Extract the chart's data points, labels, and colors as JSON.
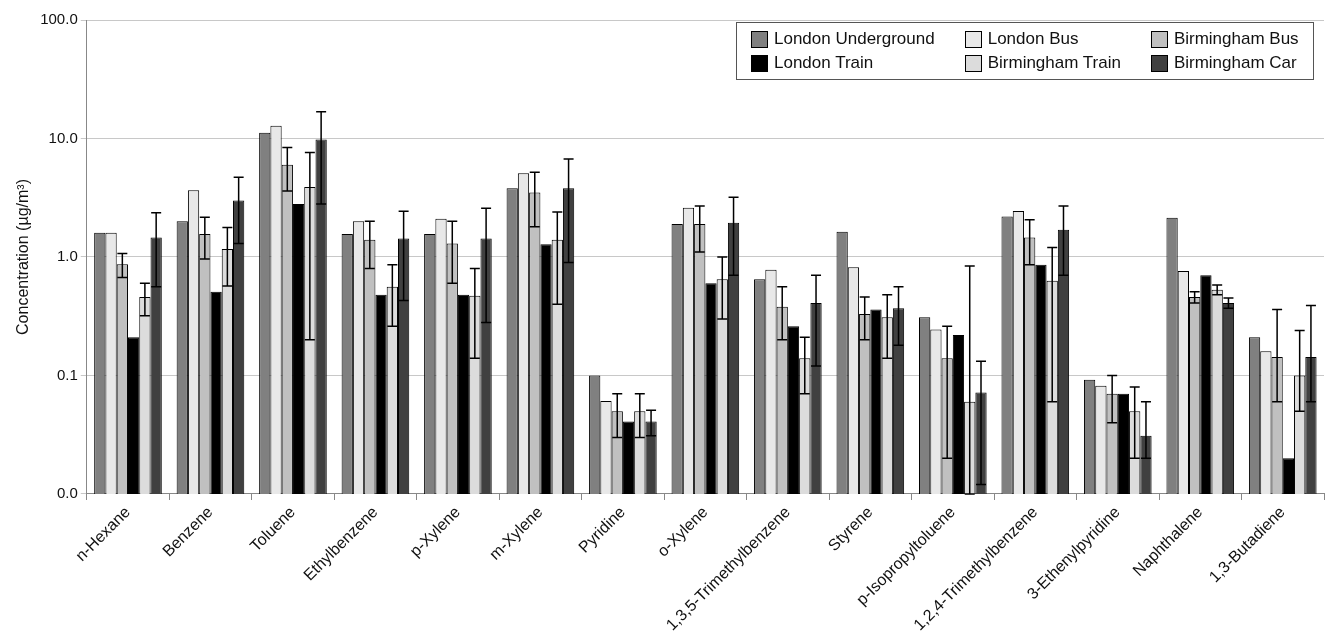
{
  "chart_data": {
    "type": "bar",
    "ylabel": "Concentration (µg/m³)",
    "log": "y",
    "ylim": [
      0.01,
      100
    ],
    "yticks": [
      {
        "value": 0.01,
        "label": "0.0"
      },
      {
        "value": 0.1,
        "label": "0.1"
      },
      {
        "value": 1,
        "label": "1.0"
      },
      {
        "value": 10,
        "label": "10.0"
      },
      {
        "value": 100,
        "label": "100.0"
      }
    ],
    "grid": "y",
    "legend": "top right",
    "categories": [
      "n-Hexane",
      "Benzene",
      "Toluene",
      "Ethylbenzene",
      "p-Xylene",
      "m-Xylene",
      "Pyridine",
      "o-Xylene",
      "1,3,5-Trimethylbenzene",
      "Styrene",
      "p-Isopropyltoluene",
      "1,2,4-Trimethylbenzene",
      "3-Ethenylpyridine",
      "Naphthalene",
      "1,3-Butadiene"
    ],
    "series": [
      {
        "name": "London Underground",
        "color": "#808080",
        "values": [
          1.6,
          2.0,
          11.2,
          1.56,
          1.56,
          3.8,
          0.1,
          1.9,
          0.65,
          1.63,
          0.31,
          2.2,
          0.092,
          2.14,
          0.21
        ]
      },
      {
        "name": "London Bus",
        "color": "#e8e8e8",
        "values": [
          1.6,
          3.65,
          12.8,
          2.0,
          2.1,
          5.1,
          0.061,
          2.6,
          0.78,
          0.82,
          0.245,
          2.45,
          0.082,
          0.76,
          0.16
        ]
      },
      {
        "name": "Birmingham Bus",
        "color": "#c0c0c0",
        "values": [
          0.87,
          1.56,
          6.0,
          1.4,
          1.3,
          3.5,
          0.05,
          1.9,
          0.38,
          0.33,
          0.14,
          1.46,
          0.07,
          0.46,
          0.143
        ],
        "errors": [
          0.2,
          0.6,
          2.4,
          0.6,
          0.7,
          1.7,
          0.02,
          0.8,
          0.18,
          0.13,
          0.12,
          0.6,
          0.03,
          0.05,
          [
            0.06,
            0.36
          ]
        ]
      },
      {
        "name": "London Train",
        "color": "#000000",
        "values": [
          0.21,
          0.51,
          2.8,
          0.48,
          0.48,
          1.28,
          0.041,
          0.6,
          0.26,
          0.36,
          0.22,
          0.86,
          0.07,
          0.7,
          0.02
        ]
      },
      {
        "name": "Birmingham Train",
        "color": "#dcdcdc",
        "values": [
          0.46,
          1.17,
          3.9,
          0.56,
          0.47,
          1.4,
          0.05,
          0.65,
          0.14,
          0.31,
          0.06,
          0.63,
          0.05,
          0.53,
          0.1
        ],
        "errors": [
          0.14,
          0.6,
          3.7,
          0.3,
          0.33,
          1.0,
          0.02,
          0.35,
          0.07,
          0.17,
          [
            0.01,
            0.84
          ],
          0.57,
          0.03,
          0.05,
          [
            0.05,
            0.24
          ]
        ]
      },
      {
        "name": "Birmingham Car",
        "color": "#404040",
        "values": [
          1.46,
          3.0,
          9.8,
          1.43,
          1.43,
          3.8,
          0.041,
          1.95,
          0.41,
          0.37,
          0.072,
          1.7,
          0.031,
          0.41,
          0.143
        ],
        "errors": [
          0.9,
          1.7,
          7.0,
          1.0,
          1.15,
          2.9,
          0.01,
          1.25,
          0.29,
          0.19,
          0.06,
          1.0,
          [
            0.02,
            0.06
          ],
          0.04,
          [
            0.06,
            0.39
          ]
        ]
      }
    ]
  }
}
